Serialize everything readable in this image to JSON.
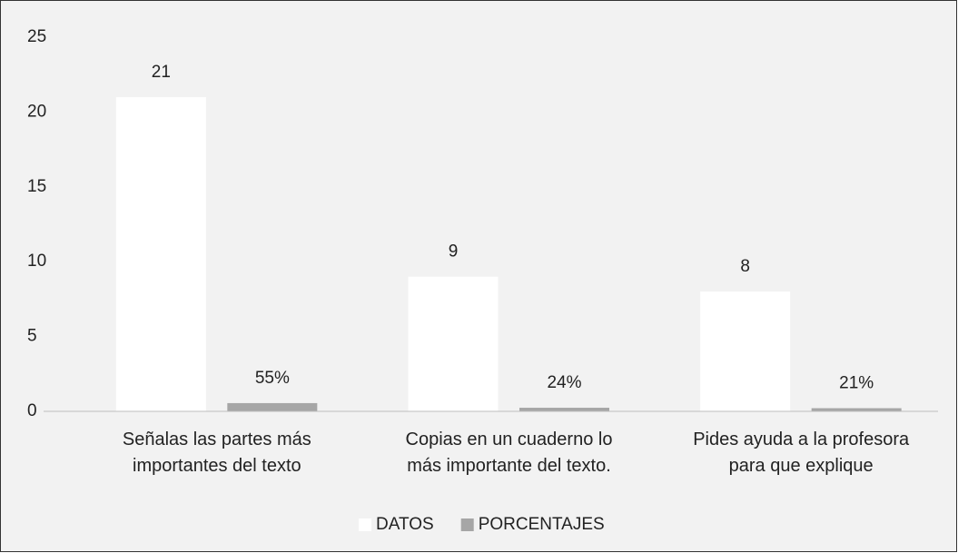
{
  "chart_data": {
    "type": "bar",
    "categories": [
      "Señalas las partes más importantes del texto",
      "Copias en un cuaderno lo más importante del texto.",
      "Pides ayuda a la profesora para que explique"
    ],
    "series": [
      {
        "name": "DATOS",
        "color": "#ffffff",
        "values": [
          21,
          9,
          8
        ]
      },
      {
        "name": "PORCENTAJES",
        "color": "#a6a6a6",
        "values": [
          0.55,
          0.24,
          0.21
        ],
        "value_labels": [
          "55%",
          "24%",
          "21%"
        ]
      }
    ],
    "ylim": [
      0,
      25
    ],
    "yticks": [
      0,
      5,
      10,
      15,
      20,
      25
    ],
    "grid": false,
    "legend": "bottom"
  }
}
